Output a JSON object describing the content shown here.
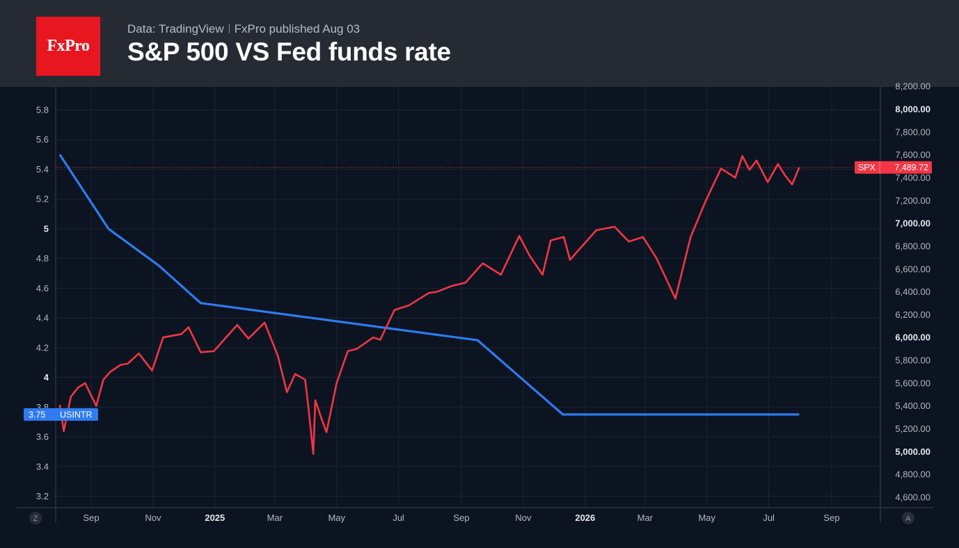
{
  "header": {
    "logo_text": "FxPro",
    "source": "Data: TradingView",
    "published": "FxPro published Aug 03",
    "title": "S&P 500 VS Fed funds rate"
  },
  "colors": {
    "background": "#0d1421",
    "header_bg": "#262a33",
    "logo_bg": "#e8171f",
    "spx_line": "#f23645",
    "rate_line": "#2f7bf0",
    "grid": "#1c2433"
  },
  "chart_data": {
    "type": "line",
    "grid": true,
    "x_ticks": [
      {
        "label": "Sep",
        "date": "2024-09-01",
        "bold": false
      },
      {
        "label": "Nov",
        "date": "2024-11-01",
        "bold": false
      },
      {
        "label": "2025",
        "date": "2025-01-01",
        "bold": true
      },
      {
        "label": "Mar",
        "date": "2025-03-01",
        "bold": false
      },
      {
        "label": "May",
        "date": "2025-05-01",
        "bold": false
      },
      {
        "label": "Jul",
        "date": "2025-07-01",
        "bold": false
      },
      {
        "label": "Sep",
        "date": "2025-09-01",
        "bold": false
      },
      {
        "label": "Nov",
        "date": "2025-11-01",
        "bold": false
      },
      {
        "label": "2026",
        "date": "2026-01-01",
        "bold": true
      },
      {
        "label": "Mar",
        "date": "2026-03-01",
        "bold": false
      },
      {
        "label": "May",
        "date": "2026-05-01",
        "bold": false
      },
      {
        "label": "Jul",
        "date": "2026-07-01",
        "bold": false
      },
      {
        "label": "Sep",
        "date": "2026-09-01",
        "bold": false
      }
    ],
    "left_axis": {
      "ylim": [
        3.1,
        6.0
      ],
      "ticks": [
        {
          "label": "5.8",
          "value": 5.8,
          "bold": false
        },
        {
          "label": "5.6",
          "value": 5.6,
          "bold": false
        },
        {
          "label": "5.4",
          "value": 5.4,
          "bold": false
        },
        {
          "label": "5.2",
          "value": 5.2,
          "bold": false
        },
        {
          "label": "5",
          "value": 5.0,
          "bold": true
        },
        {
          "label": "4.8",
          "value": 4.8,
          "bold": false
        },
        {
          "label": "4.6",
          "value": 4.6,
          "bold": false
        },
        {
          "label": "4.4",
          "value": 4.4,
          "bold": false
        },
        {
          "label": "4.2",
          "value": 4.2,
          "bold": false
        },
        {
          "label": "4",
          "value": 4.0,
          "bold": true
        },
        {
          "label": "3.8",
          "value": 3.8,
          "bold": false
        },
        {
          "label": "3.6",
          "value": 3.6,
          "bold": false
        },
        {
          "label": "3.4",
          "value": 3.4,
          "bold": false
        },
        {
          "label": "3.2",
          "value": 3.2,
          "bold": false
        }
      ]
    },
    "right_axis": {
      "ylim": [
        4500,
        8200
      ],
      "ticks": [
        {
          "label": "8,200.00",
          "value": 8200,
          "bold": false
        },
        {
          "label": "8,000.00",
          "value": 8000,
          "bold": true
        },
        {
          "label": "7,800.00",
          "value": 7800,
          "bold": false
        },
        {
          "label": "7,600.00",
          "value": 7600,
          "bold": false
        },
        {
          "label": "7,400.00",
          "value": 7400,
          "bold": false
        },
        {
          "label": "7,200.00",
          "value": 7200,
          "bold": false
        },
        {
          "label": "7,000.00",
          "value": 7000,
          "bold": true
        },
        {
          "label": "6,800.00",
          "value": 6800,
          "bold": false
        },
        {
          "label": "6,600.00",
          "value": 6600,
          "bold": false
        },
        {
          "label": "6,400.00",
          "value": 6400,
          "bold": false
        },
        {
          "label": "6,200.00",
          "value": 6200,
          "bold": false
        },
        {
          "label": "6,000.00",
          "value": 6000,
          "bold": true
        },
        {
          "label": "5,800.00",
          "value": 5800,
          "bold": false
        },
        {
          "label": "5,600.00",
          "value": 5600,
          "bold": false
        },
        {
          "label": "5,400.00",
          "value": 5400,
          "bold": false
        },
        {
          "label": "5,200.00",
          "value": 5200,
          "bold": false
        },
        {
          "label": "5,000.00",
          "value": 5000,
          "bold": true
        },
        {
          "label": "4,800.00",
          "value": 4800,
          "bold": false
        },
        {
          "label": "4,600.00",
          "value": 4600,
          "bold": false
        }
      ]
    },
    "series": [
      {
        "name": "SPX",
        "axis": "right",
        "last_value_label": "7,489.72",
        "last_value": 7489.72,
        "x": [
          "2024-08-01",
          "2024-08-05",
          "2024-08-12",
          "2024-08-19",
          "2024-08-26",
          "2024-09-06",
          "2024-09-13",
          "2024-09-20",
          "2024-09-30",
          "2024-10-07",
          "2024-10-18",
          "2024-10-31",
          "2024-11-11",
          "2024-11-29",
          "2024-12-06",
          "2024-12-18",
          "2024-12-31",
          "2025-01-13",
          "2025-01-23",
          "2025-02-03",
          "2025-02-19",
          "2025-03-04",
          "2025-03-13",
          "2025-03-21",
          "2025-03-31",
          "2025-04-03",
          "2025-04-08",
          "2025-04-10",
          "2025-04-16",
          "2025-04-21",
          "2025-05-01",
          "2025-05-12",
          "2025-05-21",
          "2025-06-06",
          "2025-06-13",
          "2025-06-27",
          "2025-07-11",
          "2025-07-31",
          "2025-08-08",
          "2025-08-22",
          "2025-09-05",
          "2025-09-22",
          "2025-10-10",
          "2025-10-28",
          "2025-11-07",
          "2025-11-20",
          "2025-11-28",
          "2025-12-11",
          "2025-12-17",
          "2026-01-12",
          "2026-01-30",
          "2026-02-13",
          "2026-02-27",
          "2026-03-12",
          "2026-03-20",
          "2026-03-31",
          "2026-04-08",
          "2026-04-15",
          "2026-04-30",
          "2026-05-15",
          "2026-05-29",
          "2026-06-05",
          "2026-06-12",
          "2026-06-19",
          "2026-06-30",
          "2026-07-10",
          "2026-07-17",
          "2026-07-24",
          "2026-07-31"
        ],
        "values": [
          5410,
          5180,
          5480,
          5560,
          5600,
          5400,
          5630,
          5700,
          5760,
          5770,
          5860,
          5710,
          6000,
          6030,
          6090,
          5870,
          5880,
          6010,
          6110,
          5990,
          6130,
          5840,
          5520,
          5680,
          5630,
          5400,
          4980,
          5450,
          5290,
          5170,
          5600,
          5880,
          5900,
          6000,
          5980,
          6240,
          6280,
          6390,
          6400,
          6450,
          6480,
          6650,
          6550,
          6890,
          6720,
          6550,
          6850,
          6880,
          6680,
          6940,
          6970,
          6840,
          6880,
          6700,
          6550,
          6340,
          6630,
          6880,
          7200,
          7480,
          7400,
          7590,
          7470,
          7550,
          7360,
          7520,
          7420,
          7340,
          7490
        ]
      },
      {
        "name": "USINTR",
        "axis": "left",
        "last_value_label": "3.75",
        "last_value": 3.75,
        "x": [
          "2024-08-01",
          "2024-09-18",
          "2024-11-07",
          "2024-12-18",
          "2025-09-17",
          "2025-10-29",
          "2025-12-10",
          "2026-07-31"
        ],
        "values": [
          5.5,
          5.0,
          4.75,
          4.5,
          4.25,
          4.0,
          3.75,
          3.75
        ]
      }
    ],
    "spx_price_line": {
      "value": 7489.72
    },
    "left_corner_label": "Z",
    "right_corner_label": "A"
  }
}
